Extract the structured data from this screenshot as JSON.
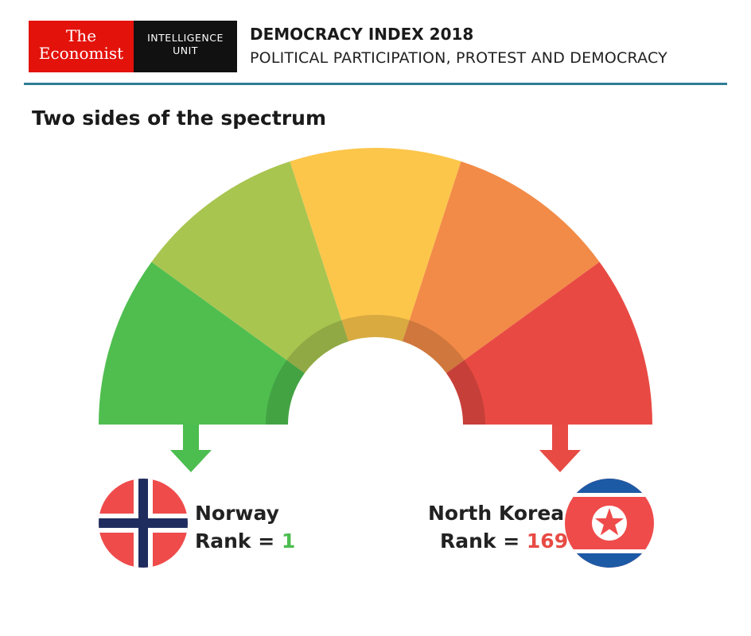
{
  "header": {
    "logo_economist_line1": "The",
    "logo_economist_line2": "Economist",
    "logo_eiu_line1": "INTELLIGENCE",
    "logo_eiu_line2": "UNIT",
    "title": "DEMOCRACY INDEX 2018",
    "subtitle": "POLITICAL PARTICIPATION, PROTEST AND DEMOCRACY",
    "brand_red": "#e3120b",
    "rule_color": "#2f7d95"
  },
  "section_title": "Two sides of the spectrum",
  "gauge": {
    "segment_colors": [
      "#4fbe4f",
      "#a8c550",
      "#fcc64b",
      "#f28b48",
      "#e84a43"
    ]
  },
  "countries": {
    "left": {
      "name": "Norway",
      "rank_label": "Rank = ",
      "rank_value": "1",
      "flag": "norway-flag-icon",
      "arrow_color": "#4cbd4f"
    },
    "right": {
      "name": "North Korea",
      "rank_label": "Rank = ",
      "rank_value": "169",
      "flag": "north-korea-flag-icon",
      "arrow_color": "#e74b44"
    }
  }
}
